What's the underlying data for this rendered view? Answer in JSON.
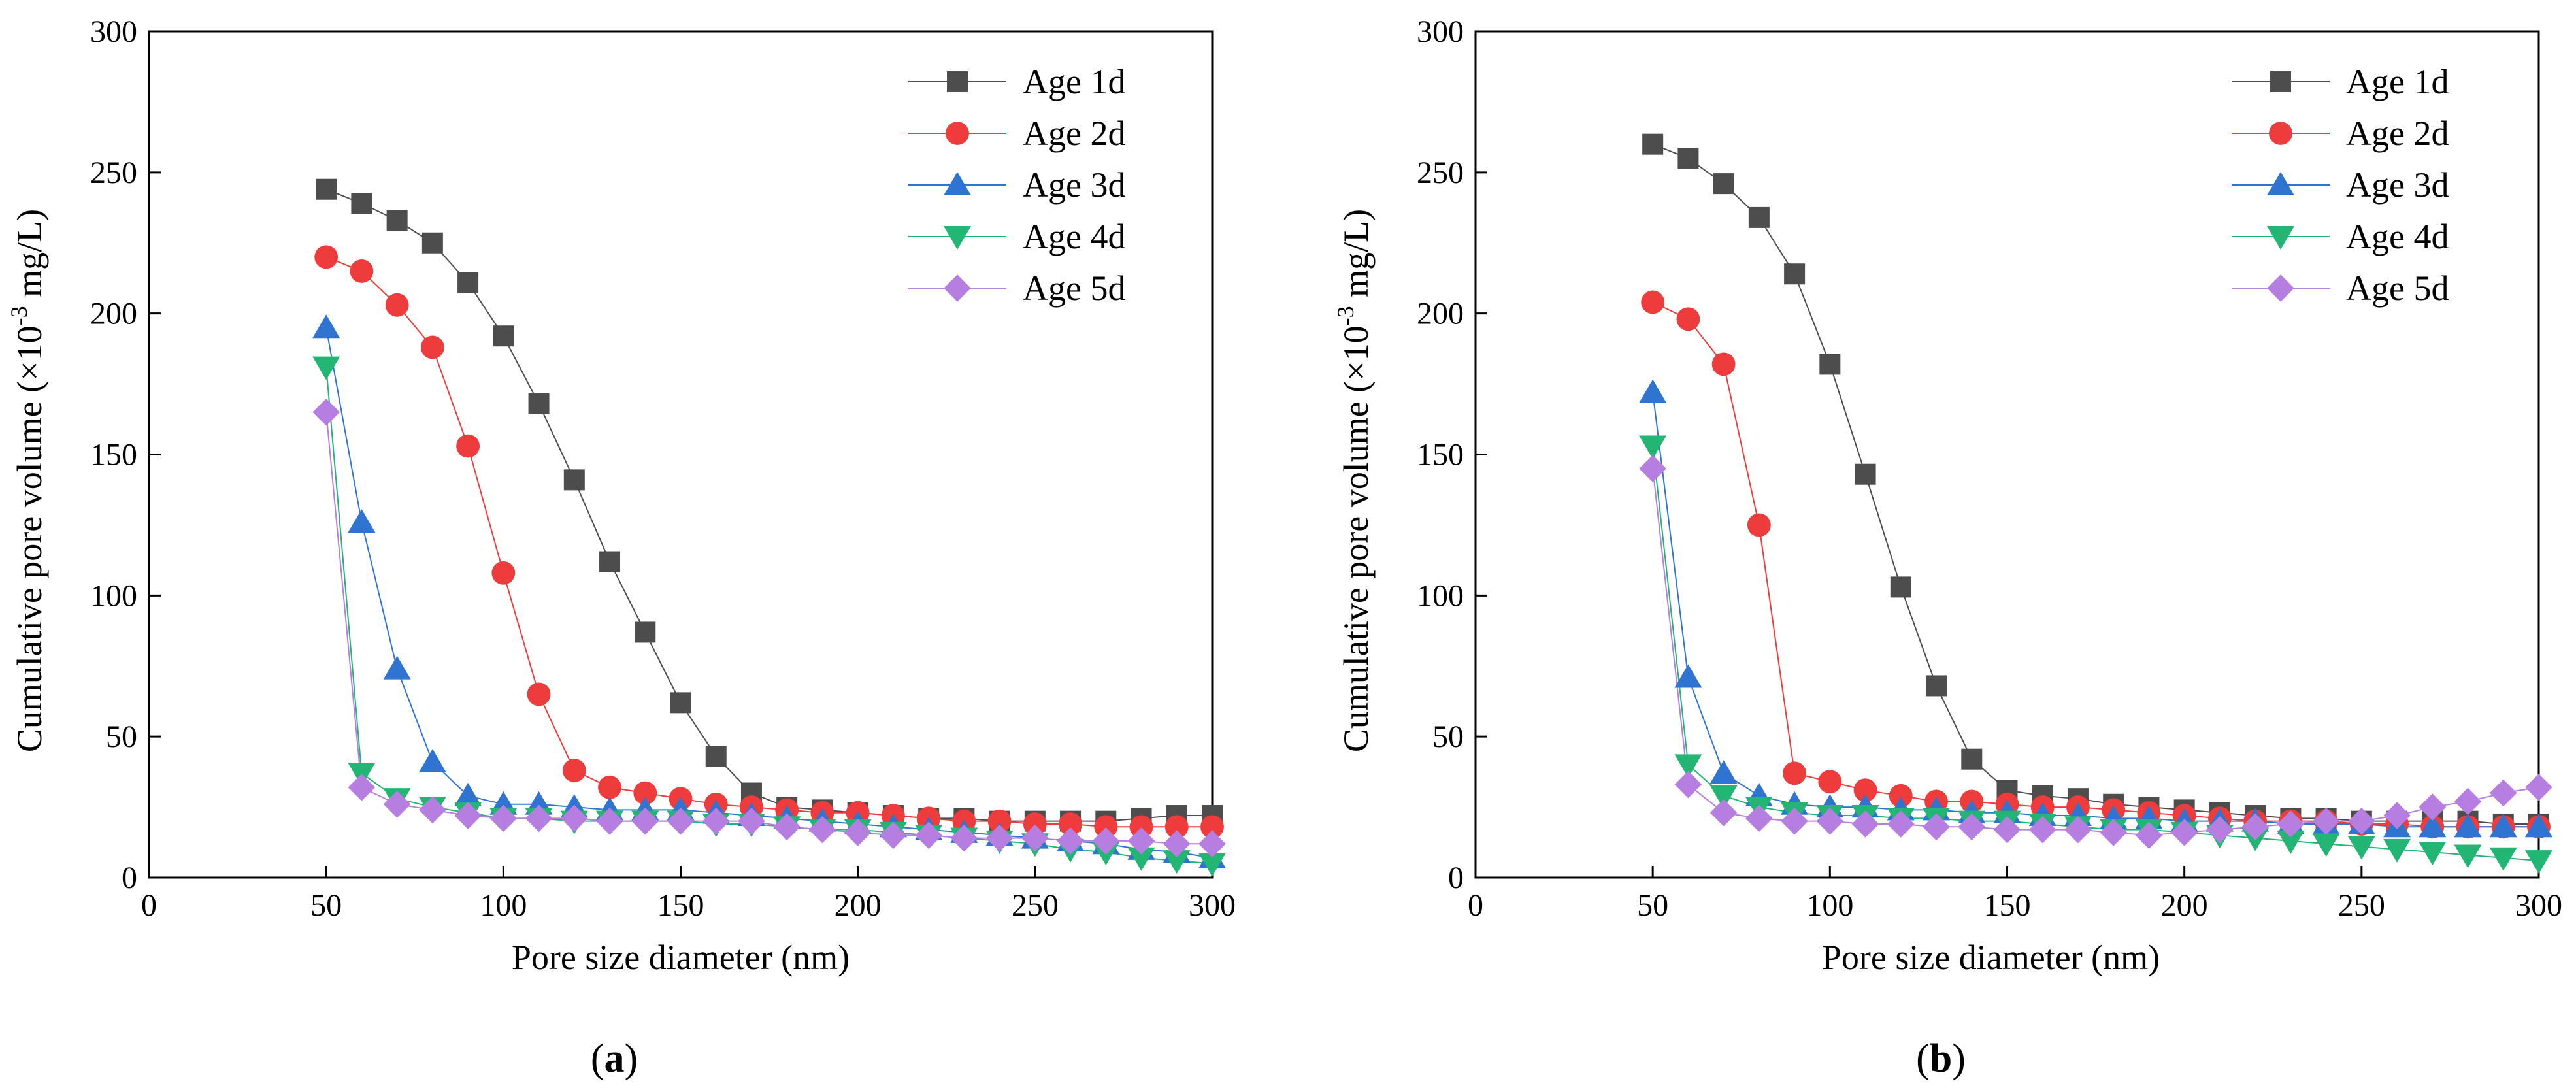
{
  "figure": {
    "panels": [
      {
        "open": "(",
        "letter": "a",
        "close": ")"
      },
      {
        "open": "(",
        "letter": "b",
        "close": ")"
      }
    ]
  },
  "chart_data": [
    {
      "type": "line",
      "panel": "a",
      "xlabel": "Pore size diameter (nm)",
      "ylabel": "Cumulative pore volume (×10⁻³ mg/L)",
      "ylabel_parts": {
        "pre": "Cumulative pore volume  (×10",
        "sup": "-3",
        "post": " mg/L)"
      },
      "xlim": [
        0,
        300
      ],
      "ylim": [
        0,
        300
      ],
      "xticks": [
        0,
        50,
        100,
        150,
        200,
        250,
        300
      ],
      "yticks": [
        0,
        50,
        100,
        150,
        200,
        250,
        300
      ],
      "grid": false,
      "legend_position": "top-right",
      "x": [
        50,
        60,
        70,
        80,
        90,
        100,
        110,
        120,
        130,
        140,
        150,
        160,
        170,
        180,
        190,
        200,
        210,
        220,
        230,
        240,
        250,
        260,
        270,
        280,
        290,
        300
      ],
      "series": [
        {
          "name": "Age 1d",
          "color": "#4d4d4d",
          "marker": "square",
          "values": [
            244,
            239,
            233,
            225,
            211,
            192,
            168,
            141,
            112,
            87,
            62,
            43,
            30,
            25,
            24,
            23,
            22,
            21,
            21,
            20,
            20,
            20,
            20,
            21,
            22,
            22
          ]
        },
        {
          "name": "Age 2d",
          "color": "#ee3b3b",
          "marker": "circle",
          "values": [
            220,
            215,
            203,
            188,
            153,
            108,
            65,
            38,
            32,
            30,
            28,
            26,
            25,
            24,
            23,
            23,
            22,
            21,
            20,
            20,
            19,
            19,
            18,
            18,
            18,
            18
          ]
        },
        {
          "name": "Age 3d",
          "color": "#2f74d0",
          "marker": "triangle-up",
          "values": [
            195,
            126,
            74,
            41,
            29,
            26,
            26,
            25,
            24,
            24,
            24,
            23,
            22,
            21,
            20,
            19,
            18,
            17,
            16,
            15,
            14,
            13,
            12,
            10,
            9,
            7
          ]
        },
        {
          "name": "Age 4d",
          "color": "#22b573",
          "marker": "triangle-down",
          "values": [
            181,
            37,
            28,
            25,
            23,
            21,
            21,
            20,
            20,
            20,
            20,
            19,
            19,
            18,
            17,
            17,
            16,
            15,
            14,
            13,
            12,
            10,
            9,
            7,
            6,
            5
          ]
        },
        {
          "name": "Age 5d",
          "color": "#b57ee0",
          "marker": "diamond",
          "values": [
            165,
            32,
            26,
            24,
            22,
            21,
            21,
            21,
            20,
            20,
            20,
            20,
            20,
            18,
            17,
            16,
            15,
            15,
            14,
            14,
            14,
            13,
            13,
            13,
            12,
            12
          ]
        }
      ]
    },
    {
      "type": "line",
      "panel": "b",
      "xlabel": "Pore size diameter (nm)",
      "ylabel": "Cumulative pore volume (×10⁻³ mg/L)",
      "ylabel_parts": {
        "pre": "Cumulative pore volume (×10",
        "sup": "-3",
        "post": " mg/L)"
      },
      "xlim": [
        0,
        300
      ],
      "ylim": [
        0,
        300
      ],
      "xticks": [
        0,
        50,
        100,
        150,
        200,
        250,
        300
      ],
      "yticks": [
        0,
        50,
        100,
        150,
        200,
        250,
        300
      ],
      "grid": false,
      "legend_position": "top-right",
      "x": [
        50,
        60,
        70,
        80,
        90,
        100,
        110,
        120,
        130,
        140,
        150,
        160,
        170,
        180,
        190,
        200,
        210,
        220,
        230,
        240,
        250,
        260,
        270,
        280,
        290,
        300
      ],
      "series": [
        {
          "name": "Age 1d",
          "color": "#4d4d4d",
          "marker": "square",
          "values": [
            260,
            255,
            246,
            234,
            214,
            182,
            143,
            103,
            68,
            42,
            31,
            29,
            28,
            26,
            25,
            24,
            23,
            22,
            21,
            21,
            20,
            20,
            20,
            20,
            19,
            19
          ]
        },
        {
          "name": "Age 2d",
          "color": "#ee3b3b",
          "marker": "circle",
          "values": [
            204,
            198,
            182,
            125,
            37,
            34,
            31,
            29,
            27,
            27,
            26,
            25,
            25,
            24,
            23,
            22,
            21,
            20,
            20,
            20,
            19,
            19,
            18,
            18,
            18,
            18
          ]
        },
        {
          "name": "Age 3d",
          "color": "#2f74d0",
          "marker": "triangle-up",
          "values": [
            172,
            71,
            37,
            29,
            26,
            25,
            25,
            24,
            24,
            23,
            23,
            22,
            22,
            21,
            21,
            20,
            20,
            20,
            19,
            19,
            19,
            18,
            18,
            18,
            18,
            18
          ]
        },
        {
          "name": "Age 4d",
          "color": "#22b573",
          "marker": "triangle-down",
          "values": [
            153,
            40,
            29,
            25,
            23,
            22,
            22,
            21,
            21,
            20,
            20,
            19,
            18,
            17,
            17,
            16,
            15,
            14,
            13,
            12,
            11,
            10,
            9,
            8,
            7,
            6
          ]
        },
        {
          "name": "Age 5d",
          "color": "#b57ee0",
          "marker": "diamond",
          "values": [
            145,
            33,
            23,
            21,
            20,
            20,
            19,
            19,
            18,
            18,
            17,
            17,
            17,
            16,
            15,
            16,
            17,
            18,
            19,
            20,
            20,
            22,
            25,
            27,
            30,
            32
          ]
        }
      ]
    }
  ]
}
